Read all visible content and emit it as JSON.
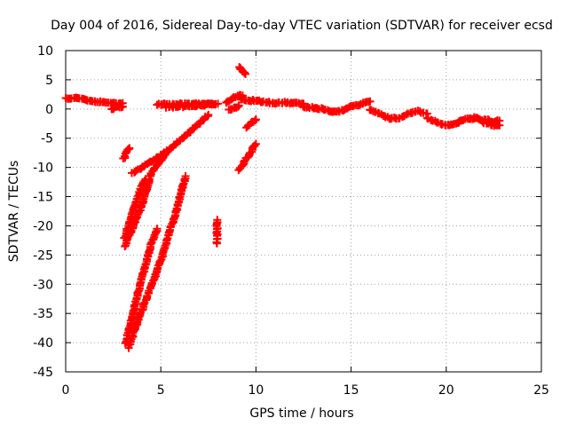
{
  "chart_data": {
    "type": "scatter",
    "title": "Day 004 of 2016, Sidereal Day-to-day VTEC variation (SDTVAR) for receiver ecsd",
    "xlabel": "GPS time / hours",
    "ylabel": "SDTVAR / TECUs",
    "xlim": [
      0,
      25
    ],
    "ylim": [
      -45,
      10
    ],
    "xticks": [
      0,
      5,
      10,
      15,
      20,
      25
    ],
    "yticks": [
      10,
      5,
      0,
      -5,
      -10,
      -15,
      -20,
      -25,
      -30,
      -35,
      -40,
      -45
    ],
    "grid": true,
    "marker": "plus",
    "color": "#ff0000",
    "series": [
      {
        "name": "SDTVAR",
        "segments": [
          [
            [
              0.0,
              1.8
            ],
            [
              0.5,
              1.9
            ],
            [
              1.0,
              1.6
            ],
            [
              1.5,
              1.3
            ],
            [
              2.0,
              1.2
            ],
            [
              2.5,
              1.0
            ],
            [
              3.0,
              1.0
            ]
          ],
          [
            [
              2.4,
              0.0
            ],
            [
              2.7,
              0.3
            ],
            [
              3.0,
              0.4
            ]
          ],
          [
            [
              4.8,
              0.8
            ],
            [
              5.5,
              0.8
            ],
            [
              6.5,
              0.9
            ],
            [
              7.5,
              0.9
            ],
            [
              8.0,
              0.9
            ]
          ],
          [
            [
              5.3,
              0.3
            ],
            [
              6.5,
              0.5
            ],
            [
              7.8,
              0.8
            ]
          ],
          [
            [
              8.4,
              1.0
            ],
            [
              8.7,
              1.6
            ],
            [
              9.0,
              2.2
            ],
            [
              9.3,
              2.3
            ]
          ],
          [
            [
              8.6,
              -0.2
            ],
            [
              8.9,
              0.2
            ],
            [
              9.1,
              0.6
            ]
          ],
          [
            [
              9.2,
              1.6
            ],
            [
              10.0,
              1.4
            ],
            [
              10.5,
              1.2
            ],
            [
              11.0,
              1.0
            ],
            [
              11.5,
              1.1
            ],
            [
              12.0,
              1.0
            ],
            [
              12.5,
              0.9
            ]
          ],
          [
            [
              12.5,
              0.4
            ],
            [
              13.0,
              0.2
            ],
            [
              13.5,
              0.0
            ],
            [
              14.0,
              -0.5
            ],
            [
              14.5,
              -0.3
            ],
            [
              15.0,
              0.4
            ],
            [
              15.5,
              0.8
            ],
            [
              16.0,
              1.3
            ]
          ],
          [
            [
              16.0,
              -0.2
            ],
            [
              16.5,
              -0.8
            ],
            [
              17.0,
              -1.6
            ],
            [
              17.5,
              -1.6
            ],
            [
              18.0,
              -0.8
            ],
            [
              18.5,
              -0.4
            ],
            [
              19.0,
              -0.8
            ]
          ],
          [
            [
              19.0,
              -1.5
            ],
            [
              19.5,
              -2.3
            ],
            [
              20.0,
              -2.8
            ],
            [
              20.5,
              -2.6
            ],
            [
              21.0,
              -1.7
            ],
            [
              21.5,
              -1.6
            ]
          ],
          [
            [
              21.5,
              -1.4
            ],
            [
              22.0,
              -2.3
            ],
            [
              22.5,
              -2.8
            ],
            [
              22.8,
              -2.8
            ]
          ],
          [
            [
              22.0,
              -1.8
            ],
            [
              22.5,
              -2.2
            ],
            [
              22.8,
              -2.0
            ]
          ],
          [
            [
              3.05,
              -8.5
            ],
            [
              3.2,
              -7.5
            ],
            [
              3.35,
              -6.7
            ]
          ],
          [
            [
              3.5,
              -11.0
            ],
            [
              4.5,
              -9.0
            ],
            [
              5.5,
              -6.8
            ],
            [
              6.5,
              -4.0
            ],
            [
              7.5,
              -1.0
            ]
          ],
          [
            [
              3.1,
              -23.5
            ],
            [
              3.5,
              -20.5
            ],
            [
              4.0,
              -16.5
            ],
            [
              4.5,
              -11.0
            ],
            [
              5.3,
              -7.5
            ]
          ],
          [
            [
              3.1,
              -22.0
            ],
            [
              3.5,
              -18.0
            ],
            [
              4.0,
              -13.0
            ],
            [
              4.2,
              -12.0
            ]
          ],
          [
            [
              3.15,
              -40.0
            ],
            [
              3.5,
              -35.5
            ],
            [
              4.0,
              -29.0
            ],
            [
              4.5,
              -23.0
            ],
            [
              4.8,
              -20.5
            ]
          ],
          [
            [
              3.3,
              -40.8
            ],
            [
              4.0,
              -34.5
            ],
            [
              5.0,
              -26.0
            ],
            [
              5.8,
              -17.5
            ],
            [
              6.3,
              -11.5
            ]
          ],
          [
            [
              7.95,
              -19.0
            ],
            [
              7.95,
              -21.5
            ],
            [
              7.95,
              -23.0
            ]
          ],
          [
            [
              9.1,
              -10.5
            ],
            [
              9.5,
              -8.5
            ],
            [
              10.0,
              -6.0
            ]
          ],
          [
            [
              9.1,
              7.2
            ],
            [
              9.3,
              6.5
            ],
            [
              9.45,
              6.0
            ]
          ],
          [
            [
              9.5,
              -3.2
            ],
            [
              9.8,
              -2.3
            ],
            [
              10.0,
              -1.8
            ]
          ]
        ]
      }
    ]
  }
}
